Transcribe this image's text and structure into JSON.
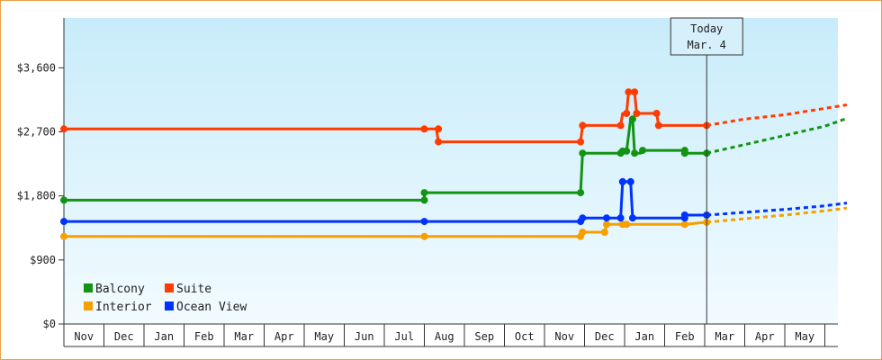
{
  "chart_data": {
    "type": "line",
    "y_ticks": [
      "$0",
      "$900",
      "$1,800",
      "$2,700",
      "$3,600"
    ],
    "ylim": [
      0,
      4300
    ],
    "months": [
      "Nov",
      "Dec",
      "Jan",
      "Feb",
      "Mar",
      "Apr",
      "May",
      "Jun",
      "Jul",
      "Aug",
      "Sep",
      "Oct",
      "Nov",
      "Dec",
      "Jan",
      "Feb",
      "Mar",
      "Apr",
      "May"
    ],
    "today": {
      "line1": "Today",
      "line2": "Mar. 4",
      "x": 16.05
    },
    "grid": false,
    "legend_position": "bottom-left",
    "series": [
      {
        "name": "Balcony",
        "color": "#129412",
        "points": [
          [
            0,
            1740
          ],
          [
            9.0,
            1740
          ],
          [
            9.0,
            1845
          ],
          [
            12.9,
            1845
          ],
          [
            12.95,
            2400
          ],
          [
            13.9,
            2400
          ],
          [
            13.95,
            2430
          ],
          [
            14.05,
            2430
          ],
          [
            14.15,
            2880
          ],
          [
            14.2,
            2880
          ],
          [
            14.25,
            2400
          ],
          [
            14.4,
            2400
          ],
          [
            14.45,
            2440
          ],
          [
            15.5,
            2440
          ],
          [
            15.5,
            2400
          ],
          [
            16.05,
            2400
          ]
        ],
        "markers": [
          [
            0,
            1740
          ],
          [
            9.0,
            1740
          ],
          [
            9.0,
            1845
          ],
          [
            12.9,
            1845
          ],
          [
            12.95,
            2400
          ],
          [
            13.9,
            2400
          ],
          [
            13.95,
            2430
          ],
          [
            14.05,
            2430
          ],
          [
            14.2,
            2880
          ],
          [
            14.25,
            2400
          ],
          [
            14.45,
            2440
          ],
          [
            15.5,
            2440
          ],
          [
            15.5,
            2400
          ],
          [
            16.05,
            2400
          ]
        ],
        "projection": [
          [
            16.05,
            2400
          ],
          [
            17.0,
            2520
          ],
          [
            18.0,
            2650
          ],
          [
            19.0,
            2780
          ],
          [
            19.55,
            2890
          ]
        ]
      },
      {
        "name": "Suite",
        "color": "#ff3b00",
        "points": [
          [
            0,
            2740
          ],
          [
            9.0,
            2740
          ],
          [
            9.3,
            2740
          ],
          [
            9.35,
            2560
          ],
          [
            12.9,
            2560
          ],
          [
            12.95,
            2790
          ],
          [
            13.9,
            2790
          ],
          [
            13.95,
            2960
          ],
          [
            14.05,
            2960
          ],
          [
            14.1,
            3260
          ],
          [
            14.25,
            3260
          ],
          [
            14.3,
            2960
          ],
          [
            14.8,
            2960
          ],
          [
            14.85,
            2790
          ],
          [
            16.05,
            2790
          ]
        ],
        "markers": [
          [
            0,
            2740
          ],
          [
            9.0,
            2740
          ],
          [
            9.35,
            2740
          ],
          [
            9.35,
            2560
          ],
          [
            12.9,
            2560
          ],
          [
            12.95,
            2790
          ],
          [
            13.9,
            2790
          ],
          [
            14.05,
            2960
          ],
          [
            14.1,
            3260
          ],
          [
            14.25,
            3260
          ],
          [
            14.3,
            2960
          ],
          [
            14.8,
            2960
          ],
          [
            14.85,
            2790
          ],
          [
            16.05,
            2790
          ]
        ],
        "projection": [
          [
            16.05,
            2790
          ],
          [
            17.0,
            2880
          ],
          [
            18.0,
            2940
          ],
          [
            19.0,
            3030
          ],
          [
            19.55,
            3080
          ]
        ]
      },
      {
        "name": "Interior",
        "color": "#f5a000",
        "points": [
          [
            0,
            1230
          ],
          [
            9.0,
            1230
          ],
          [
            12.9,
            1230
          ],
          [
            12.95,
            1290
          ],
          [
            13.5,
            1290
          ],
          [
            13.55,
            1400
          ],
          [
            15.5,
            1400
          ],
          [
            16.05,
            1430
          ]
        ],
        "markers": [
          [
            0,
            1230
          ],
          [
            9.0,
            1230
          ],
          [
            12.9,
            1230
          ],
          [
            12.95,
            1290
          ],
          [
            13.5,
            1290
          ],
          [
            13.55,
            1400
          ],
          [
            13.95,
            1400
          ],
          [
            14.05,
            1400
          ],
          [
            15.5,
            1400
          ],
          [
            16.05,
            1430
          ]
        ],
        "projection": [
          [
            16.05,
            1430
          ],
          [
            17.0,
            1480
          ],
          [
            18.0,
            1530
          ],
          [
            19.0,
            1590
          ],
          [
            19.55,
            1630
          ]
        ]
      },
      {
        "name": "Ocean View",
        "color": "#0033ff",
        "points": [
          [
            0,
            1440
          ],
          [
            9.0,
            1440
          ],
          [
            12.9,
            1440
          ],
          [
            12.95,
            1490
          ],
          [
            13.9,
            1490
          ],
          [
            13.95,
            2000
          ],
          [
            14.15,
            2000
          ],
          [
            14.2,
            1490
          ],
          [
            15.5,
            1490
          ],
          [
            15.5,
            1530
          ],
          [
            16.05,
            1530
          ]
        ],
        "markers": [
          [
            0,
            1440
          ],
          [
            9.0,
            1440
          ],
          [
            12.9,
            1440
          ],
          [
            12.95,
            1490
          ],
          [
            13.55,
            1490
          ],
          [
            13.9,
            1490
          ],
          [
            13.95,
            2000
          ],
          [
            14.15,
            2000
          ],
          [
            14.2,
            1490
          ],
          [
            15.5,
            1490
          ],
          [
            15.5,
            1530
          ],
          [
            16.05,
            1530
          ]
        ],
        "projection": [
          [
            16.05,
            1530
          ],
          [
            17.0,
            1570
          ],
          [
            18.0,
            1610
          ],
          [
            19.0,
            1660
          ],
          [
            19.55,
            1700
          ]
        ]
      }
    ]
  }
}
